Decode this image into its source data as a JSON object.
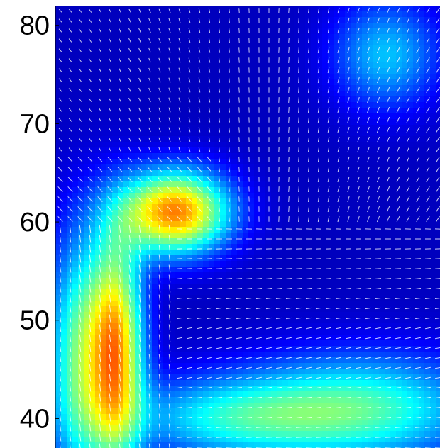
{
  "chart_data": {
    "type": "heatmap",
    "subtype": "vector-field-overlay",
    "title": "",
    "xlabel": "",
    "ylabel": "",
    "x_ticks": [],
    "y_ticks": [
      "40",
      "50",
      "60",
      "70",
      "80"
    ],
    "y_tick_values": [
      40,
      50,
      60,
      70,
      80
    ],
    "ylim": [
      37,
      82
    ],
    "xlim": [
      0,
      1
    ],
    "colormap": "jet",
    "colormap_stops": [
      "#00008f",
      "#0000ff",
      "#0080ff",
      "#00ffff",
      "#80ff80",
      "#ffff00",
      "#ff8000",
      "#ff0000"
    ],
    "arrow_color": "#ffffff",
    "grid": false,
    "legend": "none",
    "intensity_regions": [
      {
        "name": "upper-left-hotspot",
        "x": 0.31,
        "y": 61.0,
        "peak": 0.8,
        "sx": 0.1,
        "sy": 3.0
      },
      {
        "name": "left-column-core",
        "x": 0.16,
        "y": 47.0,
        "peak": 0.7,
        "sx": 0.05,
        "sy": 8.0
      },
      {
        "name": "left-column-edge",
        "x": 0.06,
        "y": 46.0,
        "peak": 0.45,
        "sx": 0.06,
        "sy": 9.0
      },
      {
        "name": "upper-right-glow",
        "x": 0.86,
        "y": 77.0,
        "peak": 0.3,
        "sx": 0.1,
        "sy": 4.0
      },
      {
        "name": "lower-right-glow",
        "x": 0.8,
        "y": 41.0,
        "peak": 0.42,
        "sx": 0.22,
        "sy": 4.0
      },
      {
        "name": "lower-middle-glow",
        "x": 0.45,
        "y": 40.0,
        "peak": 0.32,
        "sx": 0.2,
        "sy": 3.0
      }
    ]
  }
}
